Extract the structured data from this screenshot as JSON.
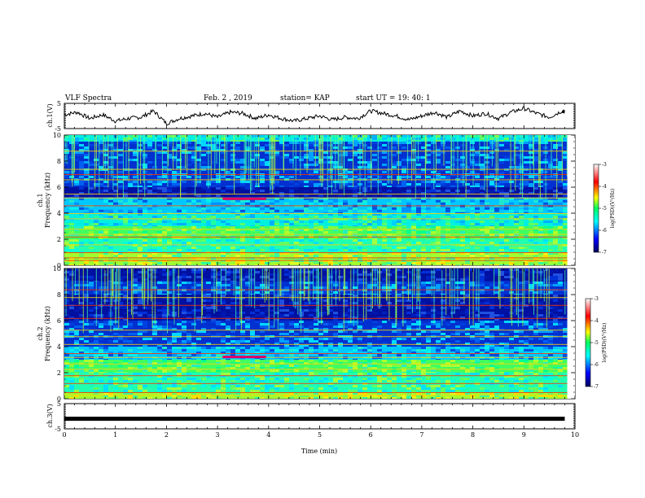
{
  "header": {
    "title": "VLF Spectra",
    "date": "Feb. 2 , 2019",
    "station": "station= KAP",
    "start": "start  UT =   19: 40: 1"
  },
  "chart_data": [
    {
      "type": "line",
      "panel": "ch1-waveform",
      "ylabel": "ch.1(V)",
      "ylim": [
        -5,
        5
      ],
      "yticks": [
        "5",
        "-5"
      ],
      "xlim": [
        0,
        10
      ],
      "color": "#000000",
      "x": [
        0,
        0.25,
        0.5,
        0.75,
        1,
        1.25,
        1.5,
        1.75,
        2,
        2.25,
        2.5,
        2.75,
        3,
        3.25,
        3.5,
        3.75,
        4,
        4.25,
        4.5,
        4.75,
        5,
        5.25,
        5.5,
        5.75,
        6,
        6.25,
        6.5,
        6.75,
        7,
        7.25,
        7.5,
        7.75,
        8,
        8.25,
        8.5,
        8.75,
        9,
        9.25,
        9.5,
        9.75,
        9.8
      ],
      "y": [
        0.5,
        1.5,
        -1,
        0.5,
        -2,
        -1,
        -0.5,
        2,
        -3,
        -1,
        0,
        1,
        -0.5,
        1.5,
        1,
        -1,
        0.5,
        -1,
        -2,
        -1,
        0,
        -1.5,
        -0.5,
        -1,
        2,
        1,
        0,
        -1.5,
        0,
        1.5,
        -0.5,
        2,
        0,
        1,
        -1,
        1.5,
        3,
        1,
        -0.5,
        2,
        1.5
      ]
    },
    {
      "type": "heatmap",
      "panel": "ch1-spectrogram",
      "ylabel": "ch.1\nFrequency  (kHz)",
      "ylim": [
        0,
        10
      ],
      "yticks": [
        "0",
        "2",
        "4",
        "6",
        "8",
        "10"
      ],
      "xlim": [
        0,
        10
      ],
      "colorbar": {
        "label": "log(PSD)(V²/Hz)",
        "range": [
          -7,
          -3
        ],
        "ticks": [
          "-3",
          "-4",
          "-5",
          "-6",
          "-7"
        ]
      },
      "bands": [
        {
          "f": [
            9.5,
            10
          ],
          "level": "cyan-green"
        },
        {
          "f": [
            6,
            9.5
          ],
          "level": "blue-cyan"
        },
        {
          "f": [
            5.2,
            6
          ],
          "level": "deep-blue"
        },
        {
          "f": [
            4,
            5.2
          ],
          "level": "cyan-blue"
        },
        {
          "f": [
            3,
            4
          ],
          "level": "cyan-green"
        },
        {
          "f": [
            2,
            3
          ],
          "level": "green"
        },
        {
          "f": [
            1,
            2
          ],
          "level": "green-cyan"
        },
        {
          "f": [
            0,
            1
          ],
          "level": "green-yellow"
        }
      ],
      "lines_khz": [
        0.4,
        0.6,
        1.0,
        1.6,
        2.2,
        2.4,
        2.8,
        3.6,
        4.0,
        4.6,
        5.2,
        5.5,
        6.6,
        7.0,
        7.4,
        8.8
      ]
    },
    {
      "type": "heatmap",
      "panel": "ch2-spectrogram",
      "ylabel": "ch.2\nFrequency  (kHz)",
      "ylim": [
        0,
        10
      ],
      "yticks": [
        "0",
        "2",
        "4",
        "6",
        "8",
        "10"
      ],
      "xlim": [
        0,
        10
      ],
      "colorbar": {
        "label": "log(PSD)(V²/Hz)",
        "range": [
          -7,
          -3
        ],
        "ticks": [
          "-3",
          "-4",
          "-5",
          "-6",
          "-7"
        ]
      },
      "bands": [
        {
          "f": [
            9,
            10
          ],
          "level": "deep-blue"
        },
        {
          "f": [
            8,
            9
          ],
          "level": "blue-cyan"
        },
        {
          "f": [
            6,
            8
          ],
          "level": "deep-blue"
        },
        {
          "f": [
            4,
            6
          ],
          "level": "blue-cyan"
        },
        {
          "f": [
            3,
            4
          ],
          "level": "cyan-blue"
        },
        {
          "f": [
            2,
            3
          ],
          "level": "green"
        },
        {
          "f": [
            0.5,
            2
          ],
          "level": "green-cyan"
        },
        {
          "f": [
            0,
            0.5
          ],
          "level": "green-yellow"
        }
      ],
      "lines_khz": [
        0.3,
        0.5,
        1.2,
        1.8,
        2.3,
        2.7,
        3.2,
        3.5,
        4.2,
        4.8,
        5.3,
        6.2,
        7.2,
        7.8,
        8.4
      ]
    },
    {
      "type": "line",
      "panel": "ch3-waveform",
      "ylabel": "ch.3(V)",
      "ylim": [
        -5,
        5
      ],
      "yticks": [
        "5",
        "-5"
      ],
      "xlim": [
        0,
        10
      ],
      "color": "#000000",
      "x": [
        0,
        9.8
      ],
      "y": [
        -1,
        -1
      ]
    }
  ],
  "xaxis": {
    "label": "Time  (min)",
    "ticks": [
      "0",
      "1",
      "2",
      "3",
      "4",
      "5",
      "6",
      "7",
      "8",
      "9",
      "10"
    ]
  }
}
